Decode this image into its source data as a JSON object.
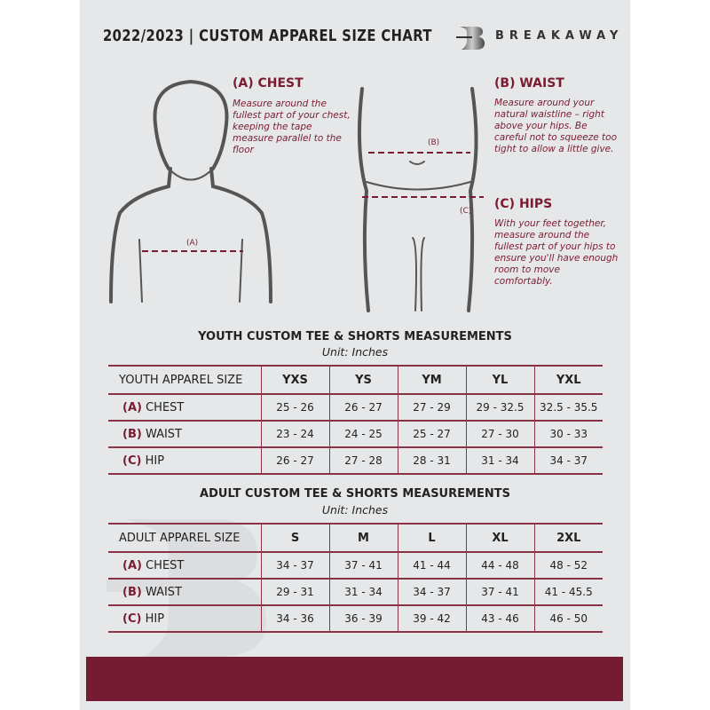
{
  "header": {
    "title": "2022/2023  |  CUSTOM APPAREL SIZE CHART",
    "brand": "BREAKAWAY",
    "logo_letter": "B"
  },
  "measures": {
    "chest": {
      "title": "(A) CHEST",
      "desc": "Measure around the fullest part of your chest, keeping the tape measure parallel to the floor",
      "marker": "(A)"
    },
    "waist": {
      "title": "(B) WAIST",
      "desc": "Measure around your natural waistline – right above your hips. Be careful not to squeeze too tight to allow a little give.",
      "marker": "(B)"
    },
    "hips": {
      "title": "(C) HIPS",
      "desc": "With your feet together, measure around the fullest part of your hips to ensure you'll have enough room to move comfortably.",
      "marker": "(C)"
    }
  },
  "youth": {
    "title": "YOUTH CUSTOM TEE & SHORTS MEASUREMENTS",
    "unit": "Unit: Inches",
    "header": [
      "YOUTH APPAREL SIZE",
      "YXS",
      "YS",
      "YM",
      "YL",
      "YXL"
    ],
    "rows": [
      {
        "code": "(A)",
        "label": "CHEST",
        "values": [
          "25 - 26",
          "26 - 27",
          "27 - 29",
          "29 - 32.5",
          "32.5 - 35.5"
        ]
      },
      {
        "code": "(B)",
        "label": "WAIST",
        "values": [
          "23 - 24",
          "24 - 25",
          "25 - 27",
          "27 - 30",
          "30 - 33"
        ]
      },
      {
        "code": "(C)",
        "label": "HIP",
        "values": [
          "26 - 27",
          "27 - 28",
          "28 - 31",
          "31 - 34",
          "34 - 37"
        ]
      }
    ]
  },
  "adult": {
    "title": "ADULT CUSTOM TEE & SHORTS MEASUREMENTS",
    "unit": "Unit: Inches",
    "header": [
      "ADULT APPAREL SIZE",
      "S",
      "M",
      "L",
      "XL",
      "2XL"
    ],
    "rows": [
      {
        "code": "(A)",
        "label": "CHEST",
        "values": [
          "34 - 37",
          "37 - 41",
          "41 - 44",
          "44 - 48",
          "48 - 52"
        ]
      },
      {
        "code": "(B)",
        "label": "WAIST",
        "values": [
          "29 - 31",
          "31 - 34",
          "34 - 37",
          "37 - 41",
          "41 - 45.5"
        ]
      },
      {
        "code": "(C)",
        "label": "HIP",
        "values": [
          "34 - 36",
          "36 - 39",
          "39 - 42",
          "43 - 46",
          "46 - 50"
        ]
      }
    ]
  },
  "colors": {
    "accent": "#7a1c31",
    "background": "#e6e7e8",
    "text": "#222222"
  }
}
